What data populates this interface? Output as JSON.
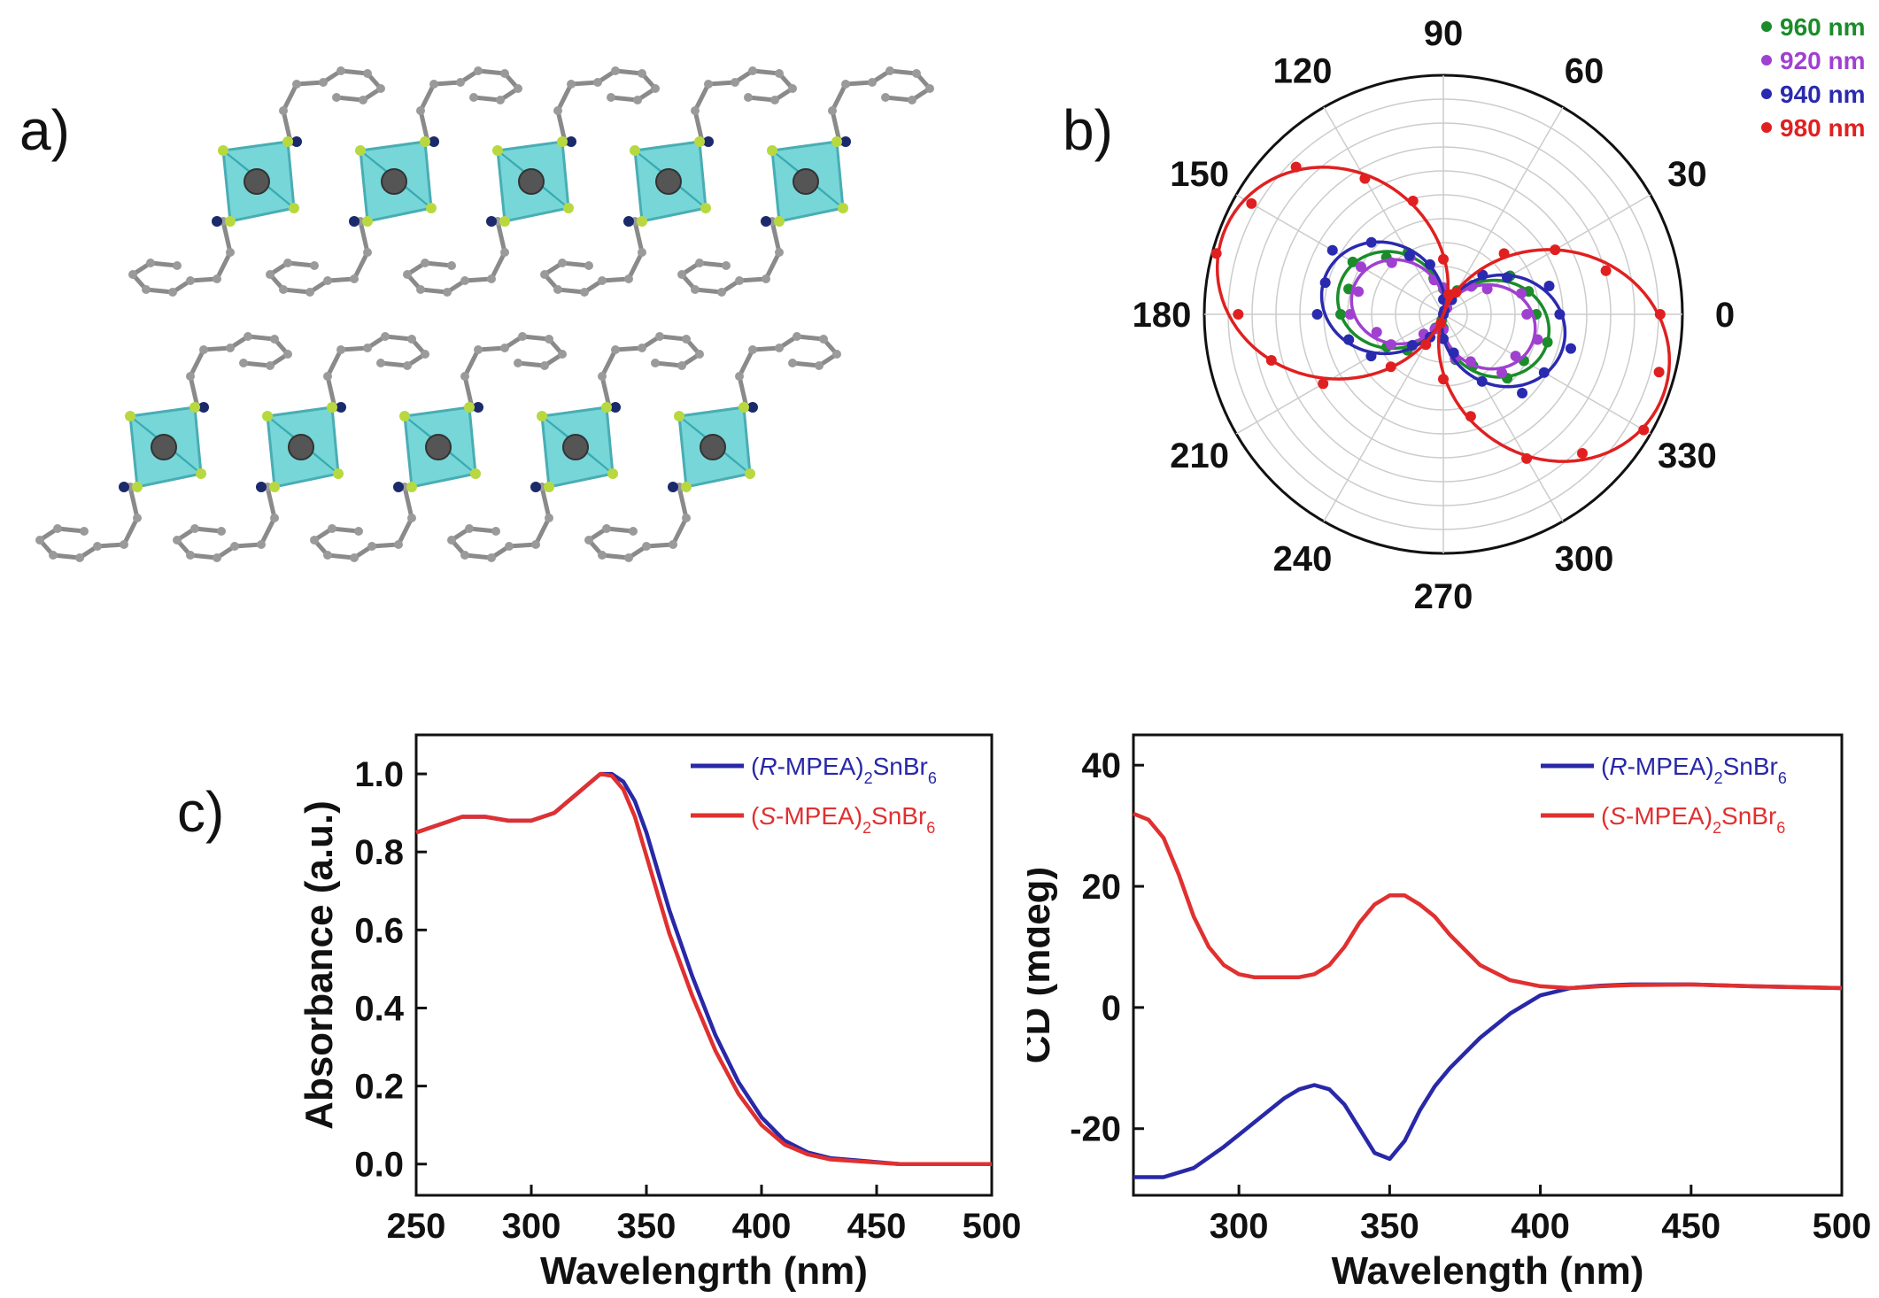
{
  "panel_labels": {
    "a": "a)",
    "b": "b)",
    "c": "c)"
  },
  "chart_data": [
    {
      "panel": "b",
      "type": "polar",
      "angle_unit": "degrees",
      "angle_ticks": [
        "0",
        "30",
        "60",
        "90",
        "120",
        "150",
        "180",
        "210",
        "240",
        "270",
        "300",
        "330"
      ],
      "grid": true,
      "legend_position": "top-right",
      "series": [
        {
          "name": "960 nm",
          "color": "#1a8c2a",
          "amplitude": 0.46,
          "orientation_deg": 165
        },
        {
          "name": "920 nm",
          "color": "#a040d0",
          "amplitude": 0.4,
          "orientation_deg": 165
        },
        {
          "name": "940 nm",
          "color": "#2a2ab0",
          "amplitude": 0.53,
          "orientation_deg": 165
        },
        {
          "name": "980 nm",
          "color": "#e02020",
          "amplitude": 1.0,
          "orientation_deg": 160
        }
      ]
    },
    {
      "panel": "c-left",
      "type": "line",
      "xlabel": "Wavelengrth (nm)",
      "ylabel": "Absorbance (a.u.)",
      "xlim": [
        250,
        500
      ],
      "ylim": [
        -0.08,
        1.1
      ],
      "xticks": [
        "250",
        "300",
        "350",
        "400",
        "450",
        "500"
      ],
      "yticks": [
        "0.0",
        "0.2",
        "0.4",
        "0.6",
        "0.8",
        "1.0"
      ],
      "legend_position": "top-right",
      "series": [
        {
          "name_prefix": "(",
          "name_italic": "R",
          "name_mid": "-MPEA)",
          "name_sub1": "2",
          "name_mid2": "SnBr",
          "name_sub2": "6",
          "color": "#2828a8",
          "x": [
            250,
            260,
            270,
            280,
            290,
            300,
            310,
            320,
            330,
            335,
            340,
            345,
            350,
            355,
            360,
            370,
            380,
            390,
            400,
            410,
            420,
            430,
            440,
            450,
            460,
            480,
            500
          ],
          "y": [
            0.85,
            0.87,
            0.89,
            0.89,
            0.88,
            0.88,
            0.9,
            0.95,
            1.0,
            1.0,
            0.98,
            0.93,
            0.85,
            0.75,
            0.65,
            0.48,
            0.33,
            0.21,
            0.12,
            0.06,
            0.03,
            0.015,
            0.01,
            0.005,
            0.0,
            0.0,
            0.0
          ]
        },
        {
          "name_prefix": "(",
          "name_italic": "S",
          "name_mid": "-MPEA)",
          "name_sub1": "2",
          "name_mid2": "SnBr",
          "name_sub2": "6",
          "color": "#e03030",
          "x": [
            250,
            260,
            270,
            280,
            290,
            300,
            310,
            320,
            330,
            335,
            340,
            345,
            350,
            355,
            360,
            370,
            380,
            390,
            400,
            410,
            420,
            430,
            440,
            450,
            460,
            480,
            500
          ],
          "y": [
            0.85,
            0.87,
            0.89,
            0.89,
            0.88,
            0.88,
            0.9,
            0.95,
            1.0,
            0.995,
            0.96,
            0.89,
            0.79,
            0.69,
            0.59,
            0.43,
            0.29,
            0.18,
            0.1,
            0.05,
            0.025,
            0.012,
            0.008,
            0.004,
            0.0,
            0.0,
            0.0
          ]
        }
      ]
    },
    {
      "panel": "c-right",
      "type": "line",
      "xlabel": "Wavelength (nm)",
      "ylabel": "CD (mdeg)",
      "xlim": [
        265,
        500
      ],
      "ylim": [
        -31,
        45
      ],
      "xticks": [
        "300",
        "350",
        "400",
        "450",
        "500"
      ],
      "yticks": [
        "-20",
        "0",
        "20",
        "40"
      ],
      "legend_position": "top-right",
      "series": [
        {
          "name_prefix": "(",
          "name_italic": "R",
          "name_mid": "-MPEA)",
          "name_sub1": "2",
          "name_mid2": "SnBr",
          "name_sub2": "6",
          "color": "#2828a8",
          "x": [
            265,
            275,
            285,
            295,
            305,
            315,
            320,
            325,
            330,
            335,
            340,
            345,
            350,
            355,
            360,
            365,
            370,
            380,
            390,
            400,
            410,
            420,
            430,
            450,
            470,
            500
          ],
          "y": [
            -28,
            -28,
            -26.5,
            -23,
            -19,
            -15,
            -13.5,
            -12.8,
            -13.5,
            -16,
            -20,
            -24,
            -25,
            -22,
            -17,
            -13,
            -10,
            -5,
            -1,
            2,
            3.2,
            3.6,
            3.8,
            3.8,
            3.5,
            3.2
          ]
        },
        {
          "name_prefix": "(",
          "name_italic": "S",
          "name_mid": "-MPEA)",
          "name_sub1": "2",
          "name_mid2": "SnBr",
          "name_sub2": "6",
          "color": "#e03030",
          "x": [
            265,
            270,
            275,
            280,
            285,
            290,
            295,
            300,
            305,
            310,
            320,
            325,
            330,
            335,
            340,
            345,
            350,
            355,
            360,
            365,
            370,
            380,
            390,
            400,
            410,
            420,
            430,
            450,
            470,
            500
          ],
          "y": [
            32,
            31,
            28,
            22,
            15,
            10,
            7,
            5.5,
            5,
            5,
            5,
            5.5,
            7,
            10,
            14,
            17,
            18.5,
            18.5,
            17,
            15,
            12,
            7,
            4.5,
            3.5,
            3.2,
            3.5,
            3.7,
            3.8,
            3.5,
            3.2
          ]
        }
      ]
    }
  ]
}
